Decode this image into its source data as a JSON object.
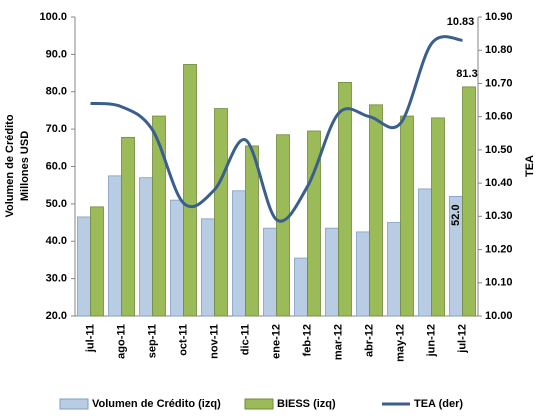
{
  "chart_data": {
    "type": "bar_line",
    "y_label": [
      "Volumen de Crédito",
      "Millones USD"
    ],
    "y2_label": "TEA",
    "categories": [
      "jul-11",
      "ago-11",
      "sep-11",
      "oct-11",
      "nov-11",
      "dic-11",
      "ene-12",
      "feb-12",
      "mar-12",
      "abr-12",
      "may-12",
      "jun-12",
      "jul-12"
    ],
    "series": [
      {
        "name": "Volumen de Crédito (izq)",
        "color": "#b8cce4",
        "type": "bar",
        "values": [
          46.5,
          57.5,
          57,
          51,
          46,
          53.5,
          43.5,
          35.5,
          43.5,
          42.5,
          45,
          54,
          52.0
        ],
        "value_labels": [
          null,
          null,
          null,
          null,
          null,
          null,
          null,
          null,
          null,
          null,
          null,
          null,
          "52.0"
        ]
      },
      {
        "name": "BIESS (izq)",
        "color": "#9bbb59",
        "type": "bar",
        "values": [
          49.2,
          67.8,
          73.5,
          87.3,
          75.5,
          65.5,
          68.5,
          69.5,
          82.5,
          76.5,
          73.5,
          73,
          81.3
        ],
        "value_labels": [
          null,
          null,
          null,
          null,
          null,
          null,
          null,
          null,
          null,
          null,
          null,
          null,
          "81.3"
        ]
      },
      {
        "name": "TEA (der)",
        "color": "#3a5f8c",
        "type": "line",
        "axis": "y2",
        "values": [
          10.64,
          10.63,
          10.56,
          10.34,
          10.38,
          10.53,
          10.29,
          10.39,
          10.61,
          10.6,
          10.58,
          10.82,
          10.83
        ],
        "value_labels": [
          null,
          null,
          null,
          null,
          null,
          null,
          null,
          null,
          null,
          null,
          null,
          null,
          "10.83"
        ]
      }
    ],
    "ylim": [
      20,
      100
    ],
    "yticks": [
      {
        "value": 20,
        "label": "20.0"
      },
      {
        "value": 30,
        "label": "30.0"
      },
      {
        "value": 40,
        "label": "40.0"
      },
      {
        "value": 50,
        "label": "50.0"
      },
      {
        "value": 60,
        "label": "60.0"
      },
      {
        "value": 70,
        "label": "70.0"
      },
      {
        "value": 80,
        "label": "80.0"
      },
      {
        "value": 90,
        "label": "90.0"
      },
      {
        "value": 100,
        "label": "100.0"
      }
    ],
    "y2lim": [
      10.0,
      10.9
    ],
    "y2ticks": [
      {
        "value": 10.0,
        "label": "10.00"
      },
      {
        "value": 10.1,
        "label": "10.10"
      },
      {
        "value": 10.2,
        "label": "10.20"
      },
      {
        "value": 10.3,
        "label": "10.30"
      },
      {
        "value": 10.4,
        "label": "10.40"
      },
      {
        "value": 10.5,
        "label": "10.50"
      },
      {
        "value": 10.6,
        "label": "10.60"
      },
      {
        "value": 10.7,
        "label": "10.70"
      },
      {
        "value": 10.8,
        "label": "10.80"
      },
      {
        "value": 10.9,
        "label": "10.90"
      }
    ],
    "legend": "bottom"
  }
}
